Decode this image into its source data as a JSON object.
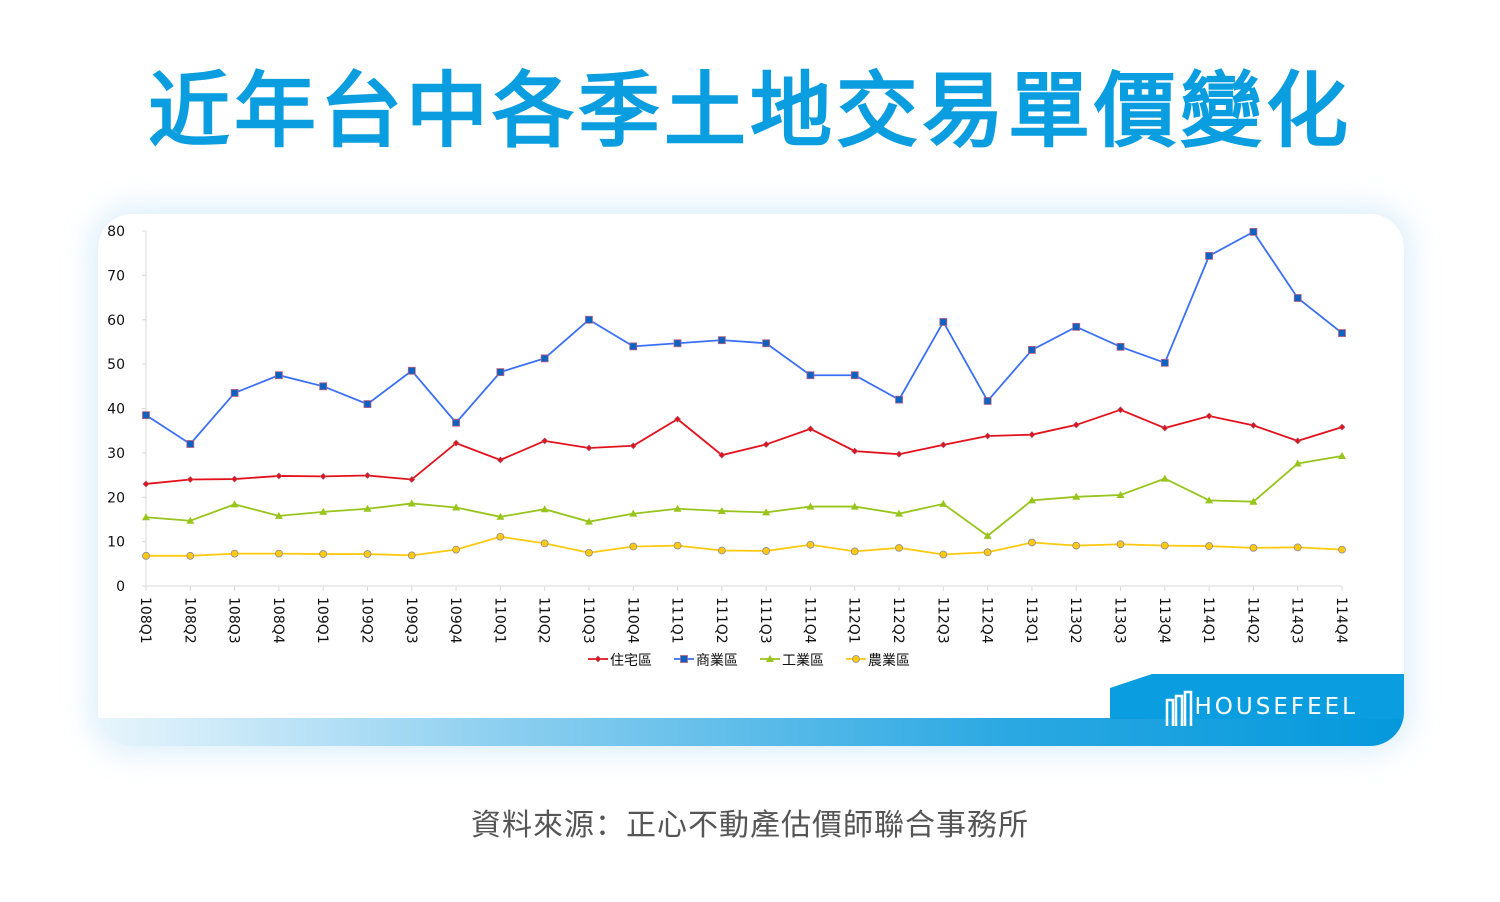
{
  "title": "近年台中各季土地交易單價變化",
  "source": "資料來源：正心不動產估價師聯合事務所",
  "logo": "HOUSEFEEL",
  "chart_data": {
    "type": "line",
    "categories": [
      "108Q1",
      "108Q2",
      "108Q3",
      "108Q4",
      "109Q1",
      "109Q2",
      "109Q3",
      "109Q4",
      "110Q1",
      "110Q2",
      "110Q3",
      "110Q4",
      "111Q1",
      "111Q2",
      "111Q3",
      "111Q4",
      "112Q1",
      "112Q2",
      "112Q3",
      "112Q4",
      "113Q1",
      "113Q2",
      "113Q3",
      "113Q4",
      "114Q1",
      "114Q2",
      "114Q3",
      "114Q4"
    ],
    "ylim": [
      0,
      80
    ],
    "yticks": [
      "0",
      "10",
      "20",
      "30",
      "40",
      "50",
      "60",
      "70",
      "80"
    ],
    "grid": false,
    "legend": "bottom",
    "series": [
      {
        "name": "住宅區",
        "color": "#e3111b",
        "marker": "diamond",
        "values": [
          23,
          24,
          24.1,
          24.8,
          24.7,
          24.9,
          24,
          32.2,
          28.4,
          32.7,
          31.1,
          31.6,
          37.6,
          29.5,
          31.9,
          35.4,
          30.4,
          29.7,
          31.8,
          33.8,
          34.1,
          36.3,
          39.7,
          35.6,
          38.3,
          36.2,
          32.7,
          35.8
        ]
      },
      {
        "name": "商業區",
        "color": "#3a6ff7",
        "marker": "square",
        "values": [
          38.5,
          32,
          43.5,
          47.5,
          45,
          41,
          48.5,
          36.8,
          48.2,
          51.3,
          60,
          54,
          54.7,
          55.4,
          54.7,
          47.5,
          47.5,
          42,
          59.5,
          41.7,
          53.2,
          58.4,
          53.9,
          50.3,
          74.4,
          79.8,
          64.9,
          57
        ]
      },
      {
        "name": "工業區",
        "color": "#97c51c",
        "marker": "triangle",
        "values": [
          15.5,
          14.7,
          18.4,
          15.8,
          16.7,
          17.4,
          18.6,
          17.7,
          15.6,
          17.3,
          14.5,
          16.3,
          17.4,
          16.9,
          16.6,
          17.9,
          17.9,
          16.3,
          18.5,
          11.3,
          19.3,
          20.1,
          20.5,
          24.2,
          19.3,
          19,
          27.6,
          29.3
        ]
      },
      {
        "name": "農業區",
        "color": "#ffc90e",
        "marker": "circle",
        "values": [
          6.8,
          6.8,
          7.3,
          7.3,
          7.2,
          7.2,
          6.9,
          8.2,
          11.1,
          9.6,
          7.5,
          8.9,
          9.1,
          8,
          7.9,
          9.3,
          7.8,
          8.6,
          7.1,
          7.6,
          9.8,
          9.1,
          9.4,
          9.1,
          9,
          8.6,
          8.7,
          8.2
        ]
      }
    ]
  }
}
